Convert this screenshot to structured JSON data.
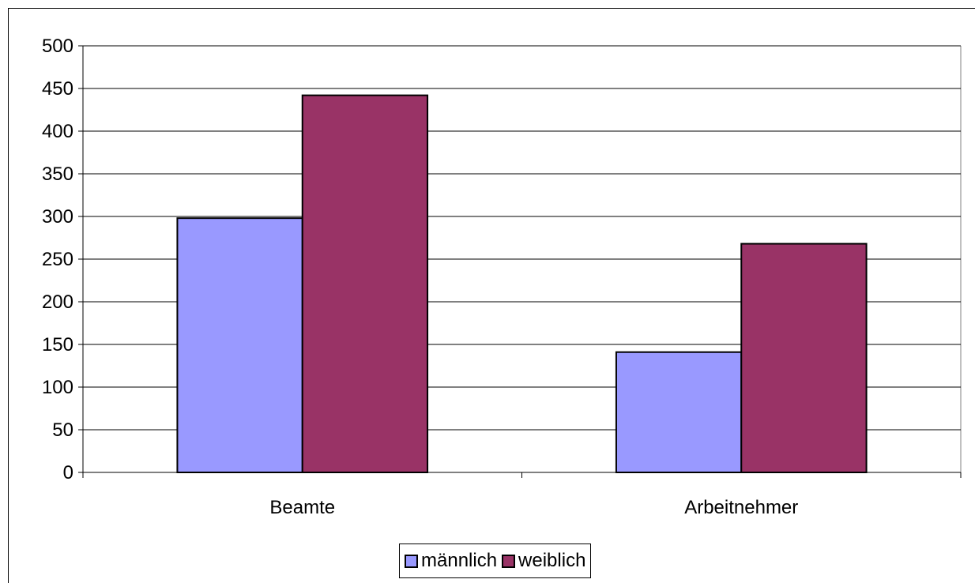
{
  "chart_data": {
    "type": "bar",
    "categories": [
      "Beamte",
      "Arbeitnehmer"
    ],
    "series": [
      {
        "name": "männlich",
        "values": [
          298,
          141
        ],
        "color": "#9999ff"
      },
      {
        "name": "weiblich",
        "values": [
          442,
          268
        ],
        "color": "#993366"
      }
    ],
    "ylim": [
      0,
      500
    ],
    "yticks": [
      0,
      50,
      100,
      150,
      200,
      250,
      300,
      350,
      400,
      450,
      500
    ],
    "grid": true,
    "legend": "bottom"
  }
}
